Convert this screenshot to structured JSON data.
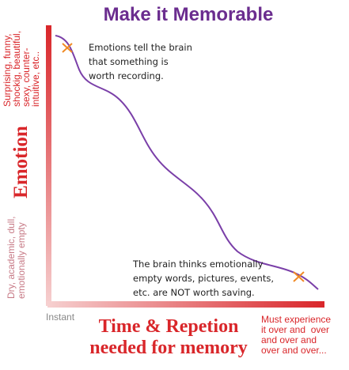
{
  "title": "Make it Memorable",
  "y_axis": {
    "label": "Emotion",
    "high_note": [
      "Surprising, funny,",
      "shockig, beautiful,",
      "sexy, counter-",
      "intuitive, etc.."
    ],
    "low_note": [
      "Dry, academic, dull,",
      "emotionally empty"
    ]
  },
  "x_axis": {
    "label": [
      "Time & Repetion",
      "needed for memory"
    ],
    "low_note": "Instant",
    "high_note": [
      "Must experience",
      "it over and  over",
      "and over and",
      "over and over..."
    ]
  },
  "annotations": [
    {
      "lines": [
        "Emotions tell the brain",
        "that something is",
        "worth recording."
      ]
    },
    {
      "lines": [
        "The brain thinks emotionally",
        "empty words, pictures, events,",
        "etc. are NOT worth saving."
      ]
    }
  ]
}
